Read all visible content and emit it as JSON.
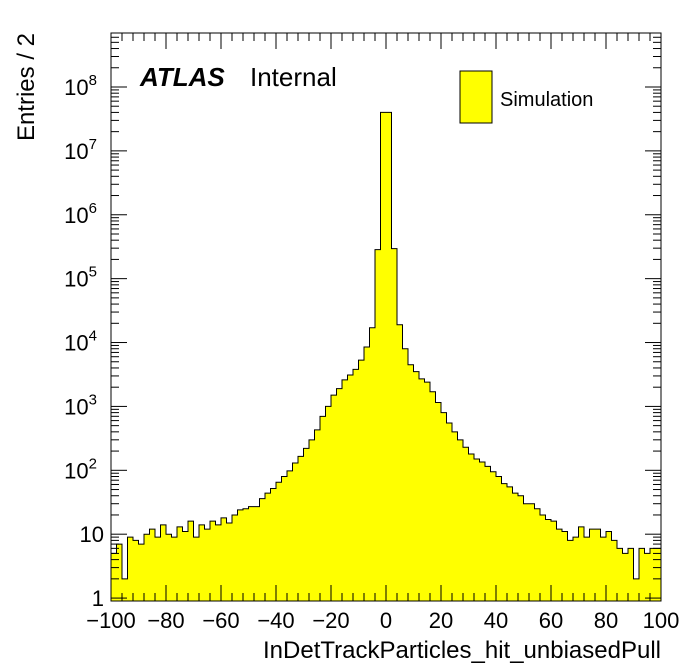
{
  "chart_data": {
    "type": "bar",
    "subtype": "histogram",
    "xlabel": "InDetTrackParticles_hit_unbiasedPull",
    "ylabel": "Entries / 2",
    "xlim": [
      -100,
      100
    ],
    "ylim": [
      0.9,
      700000000
    ],
    "y_scale": "log",
    "bin_width": 2,
    "x_ticks": [
      "−100",
      "−80",
      "−60",
      "−40",
      "−20",
      "0",
      "20",
      "40",
      "60",
      "80",
      "100"
    ],
    "y_ticks": [
      {
        "base": "1",
        "exp": ""
      },
      {
        "base": "10",
        "exp": ""
      },
      {
        "base": "10",
        "exp": "2"
      },
      {
        "base": "10",
        "exp": "3"
      },
      {
        "base": "10",
        "exp": "4"
      },
      {
        "base": "10",
        "exp": "5"
      },
      {
        "base": "10",
        "exp": "6"
      },
      {
        "base": "10",
        "exp": "7"
      },
      {
        "base": "10",
        "exp": "8"
      }
    ],
    "series": [
      {
        "name": "Simulation",
        "color": "#ffff00",
        "edges_from": -100,
        "values": [
          5,
          7,
          2,
          9,
          8,
          7,
          10,
          12,
          9,
          14,
          10,
          9,
          13,
          11,
          16,
          9,
          14,
          12,
          16,
          14,
          18,
          15,
          20,
          24,
          25,
          27,
          27,
          36,
          44,
          52,
          65,
          80,
          98,
          130,
          165,
          220,
          300,
          430,
          700,
          1000,
          1500,
          1900,
          2600,
          3100,
          3800,
          5300,
          8500,
          17000,
          285000,
          40000000,
          40000000,
          295000,
          19000,
          8000,
          4500,
          3500,
          2700,
          2400,
          1700,
          1150,
          800,
          550,
          400,
          300,
          230,
          180,
          150,
          135,
          115,
          95,
          80,
          62,
          55,
          44,
          40,
          30,
          30,
          25,
          20,
          17,
          16,
          12,
          11,
          8,
          9,
          13,
          9,
          12,
          12,
          9,
          11,
          8,
          6,
          5,
          6,
          2,
          6,
          5,
          6,
          6
        ]
      }
    ],
    "legend": {
      "position": "top-right",
      "entries": [
        "Simulation"
      ]
    },
    "annotation": {
      "brand": "ATLAS",
      "label": "Internal"
    },
    "grid": false
  }
}
